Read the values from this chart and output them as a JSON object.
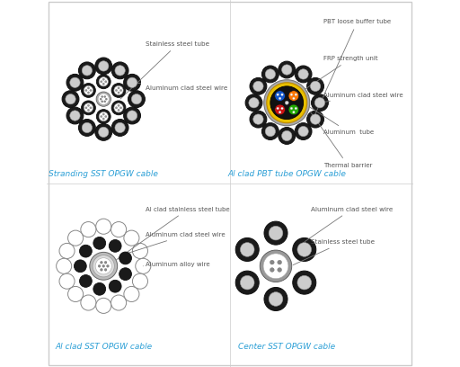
{
  "panel_bg": "#ffffff",
  "labels": {
    "tl": "Stranding SST OPGW cable",
    "tr": "Al clad PBT tube OPGW cable",
    "bl": "Al clad SST OPGW cable",
    "br": "Center SST OPGW cable"
  },
  "label_color": "#2b9fd6",
  "ann_color": "#555555",
  "dark": "#1a1a1a",
  "dark_ec": "#000000"
}
